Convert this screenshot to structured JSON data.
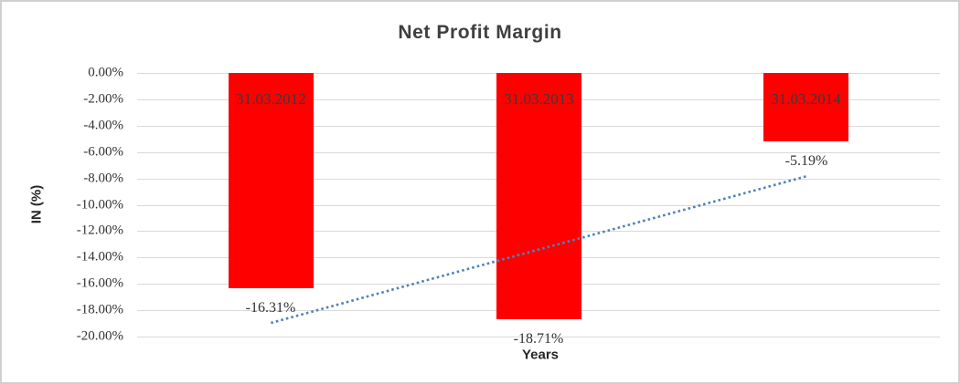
{
  "window": {
    "background": "#ffffff",
    "border_color": "#d0d0d0"
  },
  "chart_data": {
    "type": "bar",
    "title": "Net Profit Margin",
    "xlabel": "Years",
    "ylabel": "IN (%)",
    "categories": [
      "31.03.2012",
      "31.03.2013",
      "31.03.2014"
    ],
    "values": [
      -16.31,
      -18.71,
      -5.19
    ],
    "data_labels": [
      "-16.31%",
      "-18.71%",
      "-5.19%"
    ],
    "ylim": [
      0,
      -20
    ],
    "ytick_step": -2,
    "yticks": [
      "0.00%",
      "-2.00%",
      "-4.00%",
      "-6.00%",
      "-8.00%",
      "-10.00%",
      "-12.00%",
      "-14.00%",
      "-16.00%",
      "-18.00%",
      "-20.00%"
    ],
    "grid": true,
    "legend": false,
    "bar_color": "#ff0000",
    "gridline_color": "#d9d9d9",
    "category_label_position": "inside-top",
    "data_label_position": "outside-end",
    "trendline": {
      "type": "linear",
      "style": "dotted",
      "color": "#4f81bd"
    }
  }
}
